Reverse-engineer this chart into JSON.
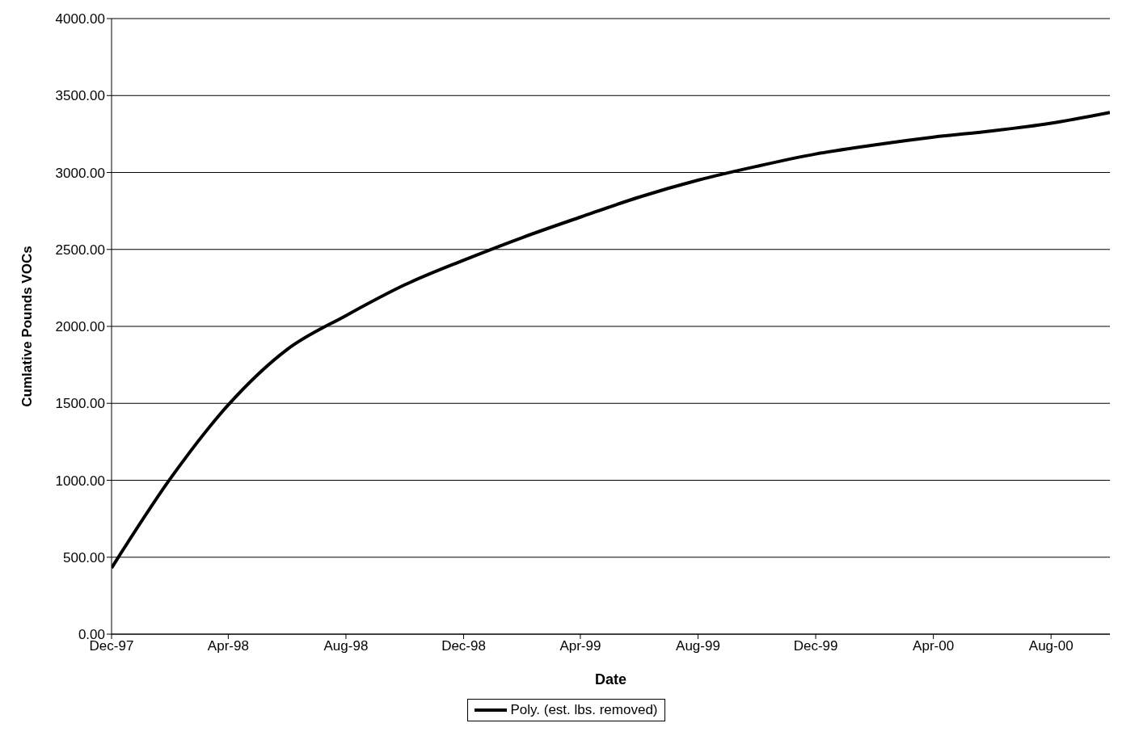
{
  "chart_data": {
    "type": "line",
    "xlabel": "Date",
    "ylabel": "Cumlative Pounds VOCs",
    "x": [
      "1997-12",
      "1998-02",
      "1998-04",
      "1998-06",
      "1998-08",
      "1998-10",
      "1998-12",
      "1999-02",
      "1999-04",
      "1999-06",
      "1999-08",
      "1999-10",
      "1999-12",
      "2000-02",
      "2000-04",
      "2000-06",
      "2000-08",
      "2000-10"
    ],
    "series": [
      {
        "name": "Poly. (est. lbs. removed)",
        "color": "#000000",
        "values": [
          430,
          1020,
          1490,
          1850,
          2070,
          2270,
          2430,
          2580,
          2710,
          2840,
          2950,
          3040,
          3120,
          3180,
          3230,
          3270,
          3320,
          3390
        ]
      }
    ],
    "xlim": [
      "1997-12",
      "2000-10"
    ],
    "xticks": [
      {
        "value": "1997-12",
        "label": "Dec-97"
      },
      {
        "value": "1998-04",
        "label": "Apr-98"
      },
      {
        "value": "1998-08",
        "label": "Aug-98"
      },
      {
        "value": "1998-12",
        "label": "Dec-98"
      },
      {
        "value": "1999-04",
        "label": "Apr-99"
      },
      {
        "value": "1999-08",
        "label": "Aug-99"
      },
      {
        "value": "1999-12",
        "label": "Dec-99"
      },
      {
        "value": "2000-04",
        "label": "Apr-00"
      },
      {
        "value": "2000-08",
        "label": "Aug-00"
      }
    ],
    "ylim": [
      0,
      4000
    ],
    "yticks": [
      {
        "value": 0,
        "label": "0.00"
      },
      {
        "value": 500,
        "label": "500.00"
      },
      {
        "value": 1000,
        "label": "1000.00"
      },
      {
        "value": 1500,
        "label": "1500.00"
      },
      {
        "value": 2000,
        "label": "2000.00"
      },
      {
        "value": 2500,
        "label": "2500.00"
      },
      {
        "value": 3000,
        "label": "3000.00"
      },
      {
        "value": 3500,
        "label": "3500.00"
      },
      {
        "value": 4000,
        "label": "4000.00"
      }
    ],
    "grid": "y",
    "legend": "bottom",
    "marker": "none",
    "line_style": "solid"
  }
}
